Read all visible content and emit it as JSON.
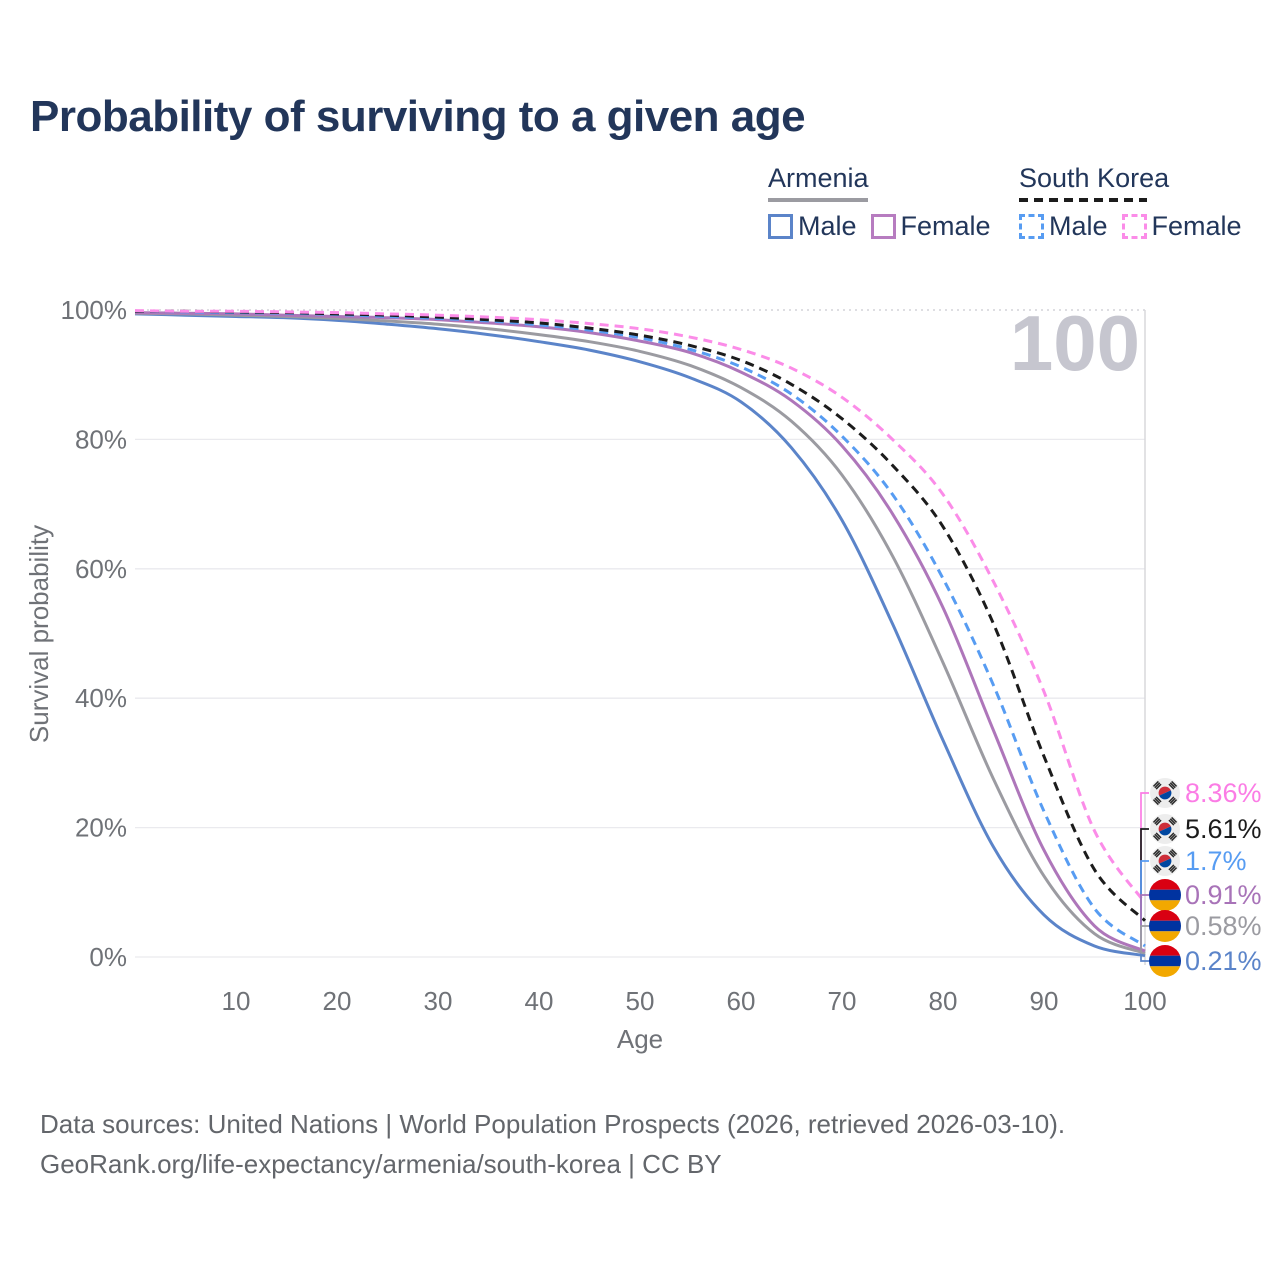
{
  "title": "Probability of surviving to a given age",
  "age_indicator": "100",
  "legend": {
    "groups": [
      {
        "country": "Armenia",
        "line_style": "solid",
        "underline_color": "#9b9ba1",
        "items": [
          {
            "label": "Male",
            "color": "#5b84c9",
            "dashed": false
          },
          {
            "label": "Female",
            "color": "#b77cc0",
            "dashed": false
          }
        ]
      },
      {
        "country": "South Korea",
        "line_style": "dashed",
        "underline_color": "#1c1c1c",
        "items": [
          {
            "label": "Male",
            "color": "#579cf2",
            "dashed": true
          },
          {
            "label": "Female",
            "color": "#fb8ce8",
            "dashed": true
          }
        ]
      }
    ]
  },
  "chart_data": {
    "type": "line",
    "title": "Probability of surviving to a given age",
    "xlabel": "Age",
    "ylabel": "Survival probability",
    "xlim": [
      0,
      100
    ],
    "ylim": [
      0,
      100
    ],
    "grid": "horizontal",
    "legend_position": "top-right",
    "x_ticks": [
      10,
      20,
      30,
      40,
      50,
      60,
      70,
      80,
      90,
      100
    ],
    "y_ticks": [
      {
        "value": 0,
        "label": "0%"
      },
      {
        "value": 20,
        "label": "20%"
      },
      {
        "value": 40,
        "label": "40%"
      },
      {
        "value": 60,
        "label": "60%"
      },
      {
        "value": 80,
        "label": "80%"
      },
      {
        "value": 100,
        "label": "100%"
      }
    ],
    "x": [
      0,
      5,
      10,
      15,
      20,
      25,
      30,
      35,
      40,
      45,
      50,
      55,
      60,
      65,
      70,
      75,
      80,
      85,
      90,
      95,
      100
    ],
    "series": [
      {
        "name": "Armenia Male",
        "color": "#5b84c9",
        "dashed": false,
        "values": [
          99.4,
          99.2,
          99.0,
          98.8,
          98.4,
          97.8,
          97.1,
          96.2,
          95.1,
          93.8,
          92.0,
          89.5,
          85.8,
          78.7,
          67.5,
          51.5,
          33.5,
          17.0,
          6.5,
          1.7,
          0.21
        ]
      },
      {
        "name": "Armenia Total",
        "color": "#9b9ba1",
        "dashed": false,
        "values": [
          99.5,
          99.4,
          99.2,
          99.0,
          98.7,
          98.3,
          97.8,
          97.1,
          96.2,
          95.1,
          93.6,
          91.4,
          88.0,
          82.8,
          74.5,
          62.0,
          45.5,
          27.5,
          12.5,
          3.6,
          0.58
        ]
      },
      {
        "name": "Armenia Female",
        "color": "#ae76ba",
        "dashed": false,
        "values": [
          99.6,
          99.5,
          99.4,
          99.2,
          99.0,
          98.8,
          98.5,
          98.0,
          97.4,
          96.5,
          95.2,
          93.4,
          90.4,
          86.0,
          79.0,
          68.5,
          54.0,
          35.0,
          16.5,
          4.8,
          0.91
        ]
      },
      {
        "name": "South Korea Male",
        "color": "#579cf2",
        "dashed": true,
        "values": [
          99.8,
          99.7,
          99.6,
          99.5,
          99.3,
          99.0,
          98.7,
          98.3,
          97.7,
          96.9,
          95.7,
          93.9,
          91.2,
          87.0,
          80.5,
          71.5,
          58.5,
          42.0,
          22.5,
          7.5,
          1.7
        ]
      },
      {
        "name": "South Korea Total",
        "color": "#1c1c1c",
        "dashed": true,
        "values": [
          99.8,
          99.8,
          99.7,
          99.6,
          99.4,
          99.2,
          98.9,
          98.5,
          98.0,
          97.2,
          96.1,
          94.5,
          92.2,
          88.5,
          83.2,
          76.0,
          66.5,
          51.5,
          31.0,
          13.5,
          5.61
        ]
      },
      {
        "name": "South Korea Female",
        "color": "#fb8ce8",
        "dashed": true,
        "values": [
          99.9,
          99.8,
          99.8,
          99.7,
          99.6,
          99.4,
          99.2,
          98.9,
          98.5,
          97.9,
          97.1,
          95.8,
          93.9,
          91.0,
          86.5,
          80.0,
          71.5,
          58.0,
          41.0,
          19.5,
          8.36
        ]
      }
    ],
    "end_labels": [
      {
        "flag": "kr",
        "series": "South Korea Female",
        "text": "8.36%",
        "value": 8.36,
        "color": "#fb7ce5"
      },
      {
        "flag": "kr",
        "series": "South Korea Total",
        "text": "5.61%",
        "value": 5.61,
        "color": "#1c1c1c"
      },
      {
        "flag": "kr",
        "series": "South Korea Male",
        "text": "1.7%",
        "value": 1.7,
        "color": "#579cf2"
      },
      {
        "flag": "am",
        "series": "Armenia Female",
        "text": "0.91%",
        "value": 0.91,
        "color": "#a873b8"
      },
      {
        "flag": "am",
        "series": "Armenia Total",
        "text": "0.58%",
        "value": 0.58,
        "color": "#9b9ba1"
      },
      {
        "flag": "am",
        "series": "Armenia Male",
        "text": "0.21%",
        "value": 0.21,
        "color": "#5b84c9"
      }
    ],
    "flag_colors": {
      "armenia": [
        "#d90012",
        "#0033a0",
        "#f2a800"
      ],
      "south_korea": {
        "background": "#ededed",
        "taegeuk_red": "#cd2e3a",
        "taegeuk_blue": "#0047a0",
        "trigram": "#2b2b2b"
      }
    }
  },
  "footer": {
    "line1": "Data sources: United Nations | World Population Prospects (2026, retrieved 2026-03-10).",
    "line2": "GeoRank.org/life-expectancy/armenia/south-korea | CC BY"
  }
}
